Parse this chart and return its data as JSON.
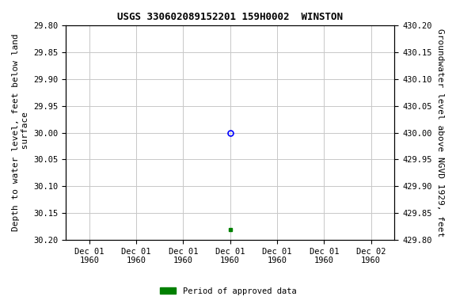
{
  "title": "USGS 330602089152201 159H0002  WINSTON",
  "ylabel_left": "Depth to water level, feet below land\n surface",
  "ylabel_right": "Groundwater level above NGVD 1929, feet",
  "ylim_left": [
    30.2,
    29.8
  ],
  "ylim_right": [
    429.8,
    430.2
  ],
  "yticks_left": [
    29.8,
    29.85,
    29.9,
    29.95,
    30.0,
    30.05,
    30.1,
    30.15,
    30.2
  ],
  "yticks_right": [
    430.2,
    430.15,
    430.1,
    430.05,
    430.0,
    429.95,
    429.9,
    429.85,
    429.8
  ],
  "data_point_x": 3,
  "data_point_y": 30.0,
  "approved_point_x": 3,
  "approved_point_y": 30.18,
  "open_circle_color": "#0000ff",
  "approved_color": "#008000",
  "background_color": "#ffffff",
  "grid_color": "#c8c8c8",
  "title_fontsize": 9,
  "axis_label_fontsize": 8,
  "tick_fontsize": 7.5,
  "legend_label": "Period of approved data",
  "xtick_positions": [
    0,
    1,
    2,
    3,
    4,
    5,
    6
  ],
  "xtick_labels": [
    "Dec 01\n1960",
    "Dec 01\n1960",
    "Dec 01\n1960",
    "Dec 01\n1960",
    "Dec 01\n1960",
    "Dec 01\n1960",
    "Dec 02\n1960"
  ],
  "xlim": [
    -0.5,
    6.5
  ],
  "font_family": "monospace"
}
